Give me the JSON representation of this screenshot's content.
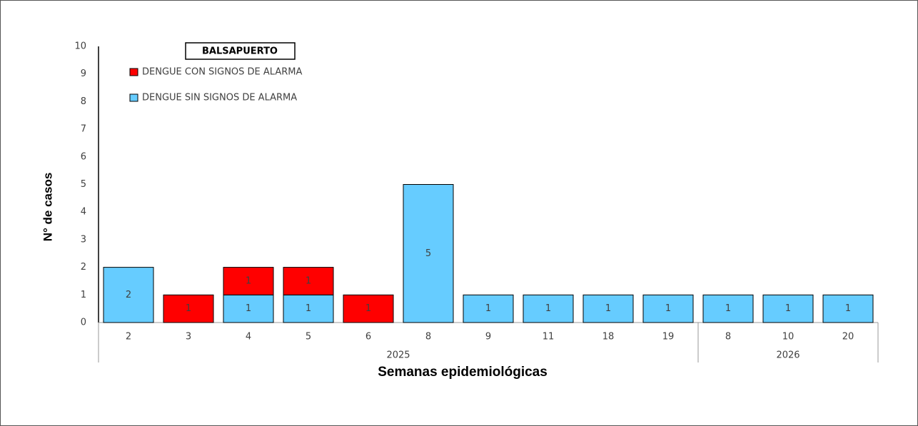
{
  "chart_data": {
    "type": "stacked_bar",
    "title": "BALSAPUERTO",
    "y_label": "N° de casos",
    "x_label": "Semanas epidemiológicas",
    "groups": [
      {
        "label": "2025",
        "categories": [
          "2",
          "3",
          "4",
          "5",
          "6",
          "8",
          "9",
          "11",
          "18",
          "19"
        ]
      },
      {
        "label": "2026",
        "categories": [
          "8",
          "10",
          "20"
        ]
      }
    ],
    "series": [
      {
        "name": "DENGUE CON SIGNOS DE ALARMA",
        "color": "#ff0000",
        "values": [
          null,
          1,
          1,
          1,
          1,
          null,
          null,
          null,
          null,
          null,
          null,
          null,
          null
        ]
      },
      {
        "name": "DENGUE SIN SIGNOS DE ALARMA",
        "color": "#66ccff",
        "values": [
          2,
          null,
          1,
          1,
          null,
          5,
          1,
          1,
          1,
          1,
          1,
          1,
          1
        ]
      }
    ],
    "ylim": [
      0,
      10
    ],
    "yticks": [
      0,
      1,
      2,
      3,
      4,
      5,
      6,
      7,
      8,
      9,
      10
    ],
    "grid": false
  }
}
